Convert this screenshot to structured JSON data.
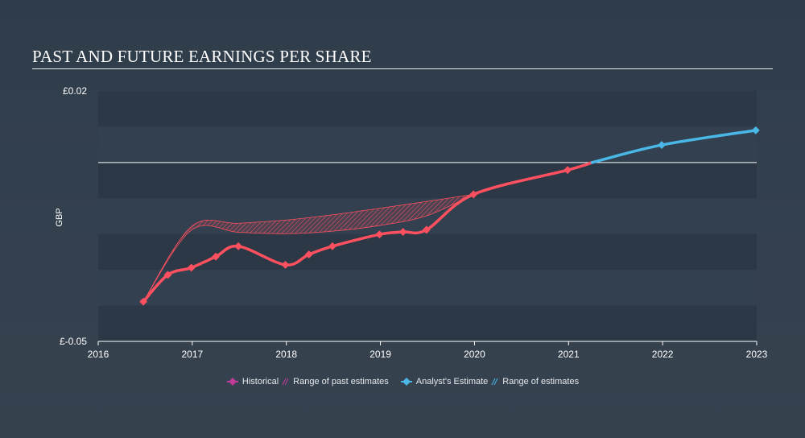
{
  "title": "PAST AND FUTURE EARNINGS PER SHARE",
  "chart_data": {
    "type": "line",
    "ylabel": "GBP",
    "y_tick_labels": [
      "£0.02",
      "£-0.05"
    ],
    "x_tick_labels": [
      "2016",
      "2017",
      "2018",
      "2019",
      "2020",
      "2021",
      "2022",
      "2023"
    ],
    "xlim": [
      2016.0,
      2023.0
    ],
    "ylim": [
      -0.05,
      0.02
    ],
    "grid": true,
    "legend_position": "bottom",
    "zero_line": 0.0,
    "series": [
      {
        "name": "Historical",
        "color": "#ff5060",
        "x": [
          2016.48,
          2016.74,
          2016.99,
          2017.25,
          2017.49,
          2017.99,
          2018.24,
          2018.49,
          2018.99,
          2019.24,
          2019.49,
          2019.99,
          2020.99,
          2021.25
        ],
        "y": [
          -0.0389,
          -0.0314,
          -0.0294,
          -0.0263,
          -0.0234,
          -0.0286,
          -0.0257,
          -0.0234,
          -0.0201,
          -0.0194,
          -0.0188,
          -0.0089,
          -0.0021,
          0.0
        ]
      },
      {
        "name": "Analyst's Estimate",
        "color": "#4ab8e6",
        "x": [
          2021.25,
          2021.99,
          2022.99
        ],
        "y": [
          0.0,
          0.0049,
          0.009
        ]
      }
    ],
    "range_of_past_estimates": {
      "name": "Range of past estimates",
      "x": [
        2016.48,
        2016.99,
        2017.49,
        2017.99,
        2018.49,
        2018.99,
        2019.49,
        2019.99
      ],
      "low": [
        -0.0389,
        -0.0189,
        -0.0195,
        -0.0199,
        -0.0192,
        -0.0176,
        -0.0149,
        -0.0089
      ],
      "high": [
        -0.0389,
        -0.0179,
        -0.017,
        -0.0161,
        -0.0146,
        -0.0128,
        -0.0109,
        -0.0089
      ]
    },
    "legend": [
      {
        "label": "Historical",
        "marker": "diamond",
        "color": "#c03a9a"
      },
      {
        "label": "Range of past estimates",
        "marker": "hatch",
        "color": "#c03a9a"
      },
      {
        "label": "Analyst's Estimate",
        "marker": "diamond",
        "color": "#4ab8e6"
      },
      {
        "label": "Range of estimates",
        "marker": "hatch",
        "color": "#4ab8e6"
      }
    ]
  }
}
